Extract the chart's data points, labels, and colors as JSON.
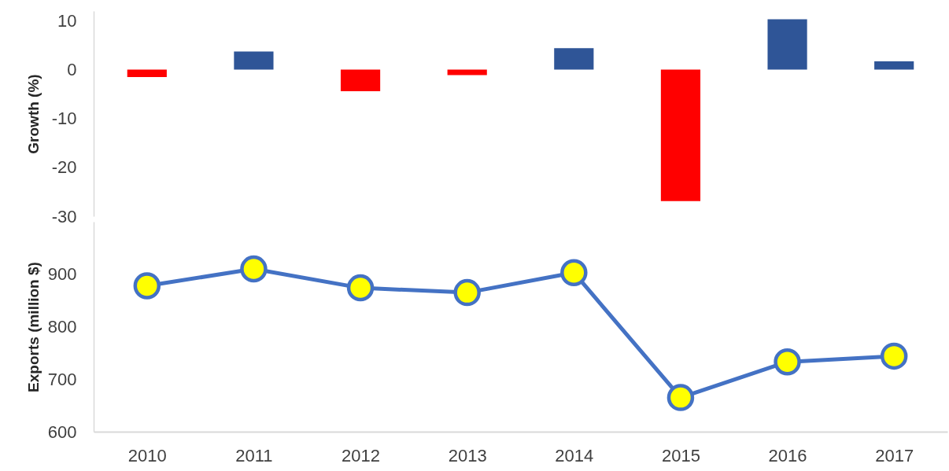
{
  "chart_data": [
    {
      "type": "bar",
      "ylabel": "Growth (%)",
      "categories": [
        "2010",
        "2011",
        "2012",
        "2013",
        "2014",
        "2015",
        "2016",
        "2017"
      ],
      "values": [
        -1.5,
        3.7,
        -4.4,
        -1.1,
        4.4,
        -26.9,
        10.3,
        1.7
      ],
      "colors": [
        "#ff0000",
        "#2f5597",
        "#ff0000",
        "#ff0000",
        "#2f5597",
        "#ff0000",
        "#2f5597",
        "#2f5597"
      ],
      "ylim": [
        -30,
        12
      ],
      "yticks": [
        -30,
        -20,
        -10,
        0,
        10
      ],
      "tick_labels": "y"
    },
    {
      "type": "line",
      "ylabel": "Exports (million $)",
      "categories": [
        "2010",
        "2011",
        "2012",
        "2013",
        "2014",
        "2015",
        "2016",
        "2017"
      ],
      "series": [
        {
          "color": "#4472c4",
          "values": [
            878,
            910,
            874,
            865,
            903,
            665,
            733,
            744
          ]
        }
      ],
      "ylim": [
        600,
        1000
      ],
      "yticks": [
        600,
        700,
        800,
        900
      ],
      "marker": "circle"
    }
  ]
}
